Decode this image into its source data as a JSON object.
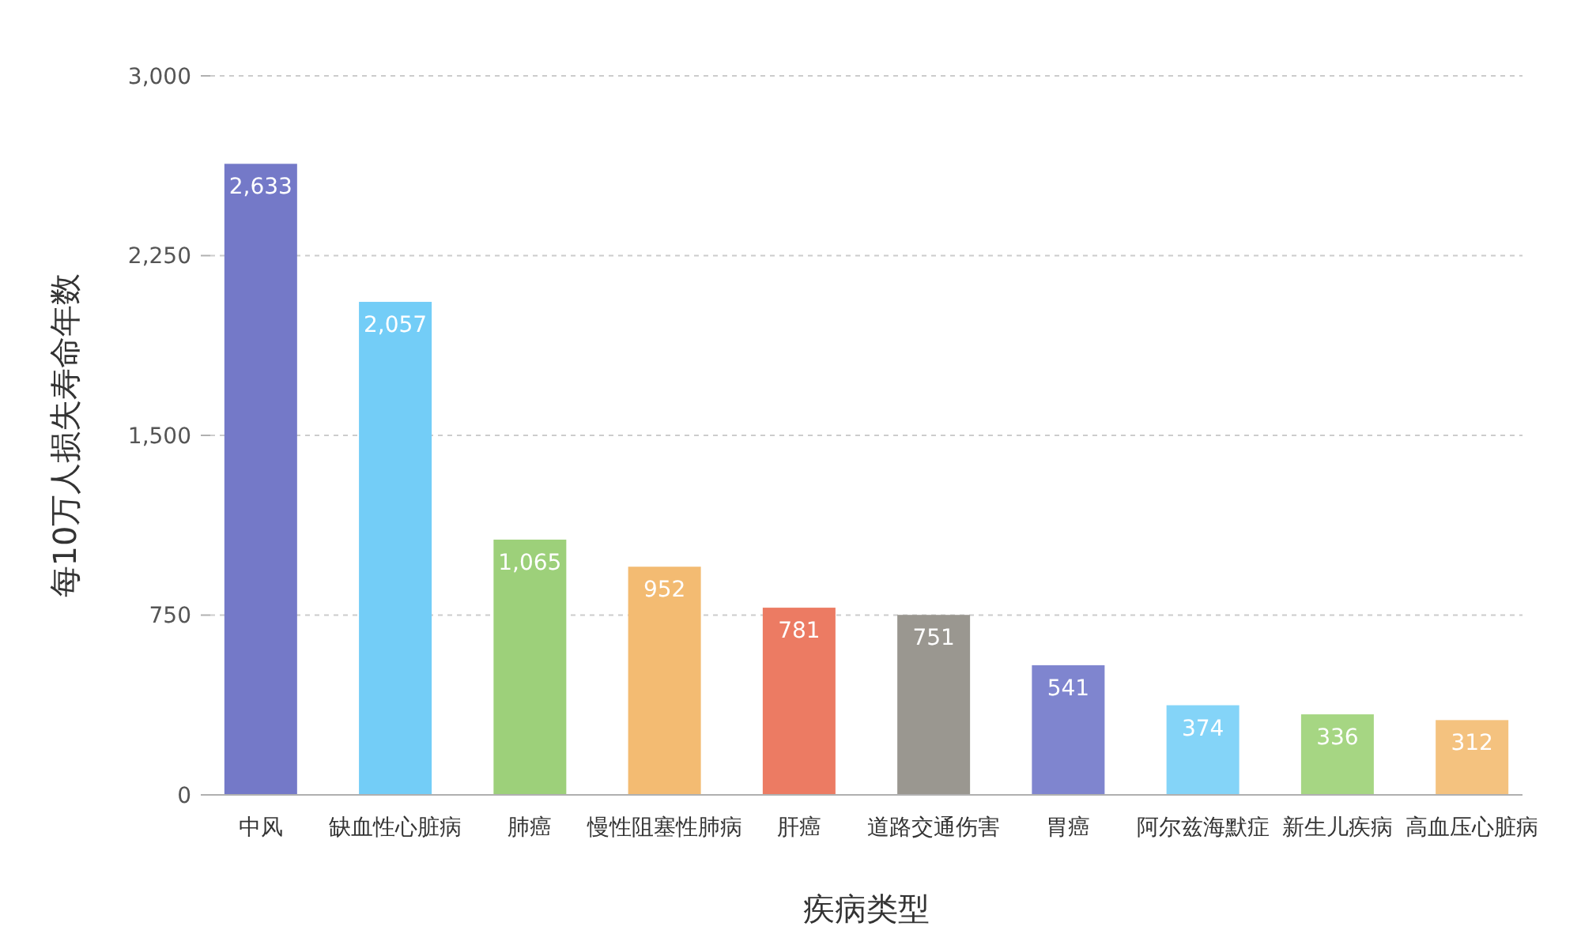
{
  "chart_data": {
    "type": "bar",
    "xlabel": "疾病类型",
    "ylabel": "每10万人损失寿命年数",
    "categories": [
      "中风",
      "缺血性心脏病",
      "肺癌",
      "慢性阻塞性肺病",
      "肝癌",
      "道路交通伤害",
      "胃癌",
      "阿尔兹海默症",
      "新生儿疾病",
      "高血压心脏病"
    ],
    "values": [
      2633,
      2057,
      1065,
      952,
      781,
      751,
      541,
      374,
      336,
      312
    ],
    "colors": [
      "#7479c8",
      "#73cdf7",
      "#9dd07a",
      "#f3bb72",
      "#ec7b63",
      "#9a9790",
      "#7f85cf",
      "#84d4f8",
      "#a6d683",
      "#f4c27f"
    ],
    "value_labels": [
      "2,633",
      "2,057",
      "1,065",
      "952",
      "781",
      "751",
      "541",
      "374",
      "336",
      "312"
    ],
    "ylim": [
      0,
      3000
    ],
    "yticks": [
      {
        "value": 0,
        "label": "0"
      },
      {
        "value": 750,
        "label": "750"
      },
      {
        "value": 1500,
        "label": "1,500"
      },
      {
        "value": 2250,
        "label": "2,250"
      },
      {
        "value": 3000,
        "label": "3,000"
      }
    ],
    "grid": "y"
  }
}
